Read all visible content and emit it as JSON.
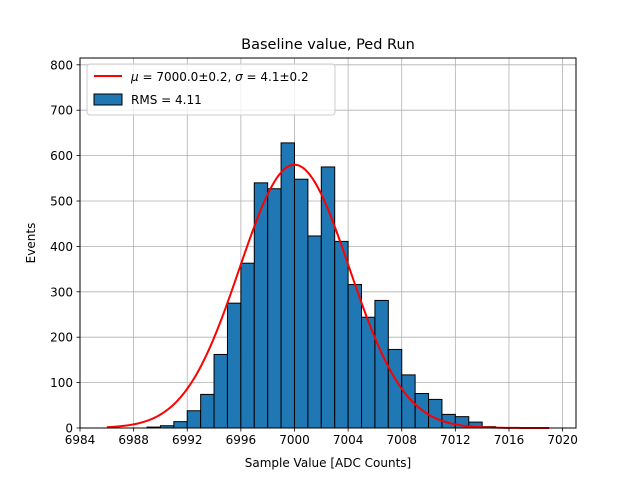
{
  "chart_data": {
    "type": "bar",
    "title": "Baseline value, Ped Run",
    "xlabel": "Sample Value [ADC Counts]",
    "ylabel": "Events",
    "xlim": [
      6984,
      7021
    ],
    "ylim": [
      0,
      815
    ],
    "grid": true,
    "legend_position": "top-left",
    "x_ticks": [
      6984,
      6988,
      6992,
      6996,
      7000,
      7004,
      7008,
      7012,
      7016,
      7020
    ],
    "y_ticks": [
      0,
      100,
      200,
      300,
      400,
      500,
      600,
      700,
      800
    ],
    "histogram": {
      "name": "RMS = 4.11",
      "color": "#1f77b4",
      "bin_edges": [
        6989,
        6990,
        6991,
        6992,
        6993,
        6994,
        6995,
        6996,
        6997,
        6998,
        6999,
        7000,
        7001,
        7002,
        7003,
        7004,
        7005,
        7006,
        7007,
        7008,
        7009,
        7010,
        7011,
        7012,
        7013,
        7014,
        7015
      ],
      "counts": [
        2,
        5,
        14,
        38,
        74,
        162,
        275,
        363,
        540,
        527,
        628,
        548,
        423,
        575,
        411,
        316,
        244,
        281,
        173,
        117,
        76,
        63,
        30,
        25,
        13,
        3
      ]
    },
    "fit": {
      "name_prefix_mu": "μ",
      "name_prefix_sigma": "σ",
      "mu_text": " = 7000.0±0.2, ",
      "sigma_text": " = 4.1±0.2",
      "color": "#ff0000",
      "type": "gaussian",
      "amplitude": 580,
      "mean": 7000.0,
      "sigma": 4.1,
      "x_range": [
        6986,
        7019
      ]
    }
  }
}
